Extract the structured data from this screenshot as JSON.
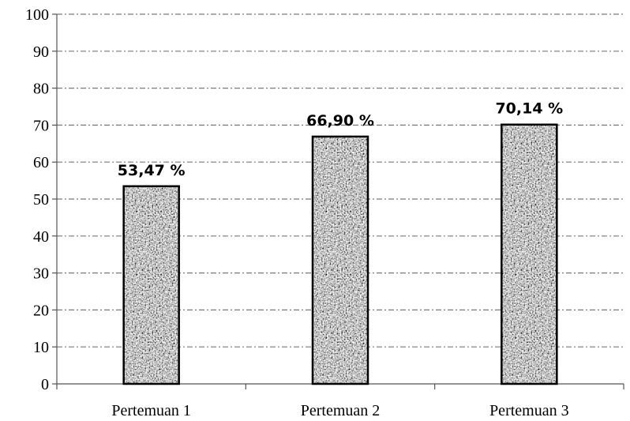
{
  "chart_data": {
    "type": "bar",
    "categories": [
      "Pertemuan 1",
      "Pertemuan 2",
      "Pertemuan 3"
    ],
    "values": [
      53.47,
      66.9,
      70.14
    ],
    "data_labels": [
      "53,47 %",
      "66,90 %",
      "70,14 %"
    ],
    "ylim": [
      0,
      100
    ],
    "yticks": [
      "0",
      "10",
      "20",
      "30",
      "40",
      "50",
      "60",
      "70",
      "80",
      "90",
      "100"
    ],
    "grid": true,
    "grid_style": "dash-dot",
    "bar_fill": "#8c8c8c",
    "bar_pattern": "granite",
    "bar_stroke": "#000000",
    "legend": "none"
  }
}
